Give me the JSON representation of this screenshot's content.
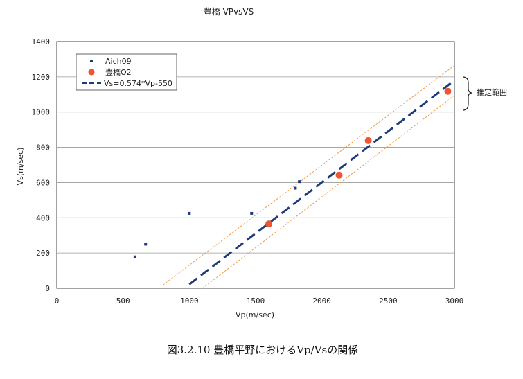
{
  "chart_data": {
    "type": "scatter",
    "title": "豊橋 VPvsVS",
    "xlabel": "Vp(m/sec)",
    "ylabel": "Vs(m/sec)",
    "xlim": [
      0,
      3000
    ],
    "ylim": [
      0,
      1400
    ],
    "x_ticks": [
      0,
      500,
      1000,
      1500,
      2000,
      2500,
      3000
    ],
    "y_ticks": [
      0,
      200,
      400,
      600,
      800,
      1000,
      1200,
      1400
    ],
    "grid": "horizontal",
    "legend_position": "top-left",
    "series": [
      {
        "name": "Aich09",
        "marker": "square",
        "color": "#1f3a7a",
        "points": [
          [
            590,
            178
          ],
          [
            670,
            250
          ],
          [
            1000,
            425
          ],
          [
            1470,
            425
          ],
          [
            1800,
            568
          ],
          [
            1830,
            605
          ]
        ]
      },
      {
        "name": "豊橋O2",
        "marker": "circle",
        "color": "#ee5533",
        "points": [
          [
            1600,
            365
          ],
          [
            2130,
            642
          ],
          [
            2350,
            838
          ],
          [
            2950,
            1118
          ]
        ]
      }
    ],
    "fit_line": {
      "name": "Vs=0.574*Vp-550",
      "style": "dashed",
      "color": "#1f3a7a",
      "points": [
        [
          1000,
          22
        ],
        [
          3000,
          1180
        ]
      ]
    },
    "range_lines": [
      {
        "color": "#f09a4a",
        "style": "dotted",
        "points": [
          [
            800,
            18
          ],
          [
            3000,
            1265
          ]
        ]
      },
      {
        "color": "#f09a4a",
        "style": "dotted",
        "points": [
          [
            1100,
            0
          ],
          [
            3000,
            1095
          ]
        ]
      }
    ],
    "annotation": "推定範囲",
    "caption": "図3.2.10  豊橋平野におけるVp/Vsの関係"
  }
}
